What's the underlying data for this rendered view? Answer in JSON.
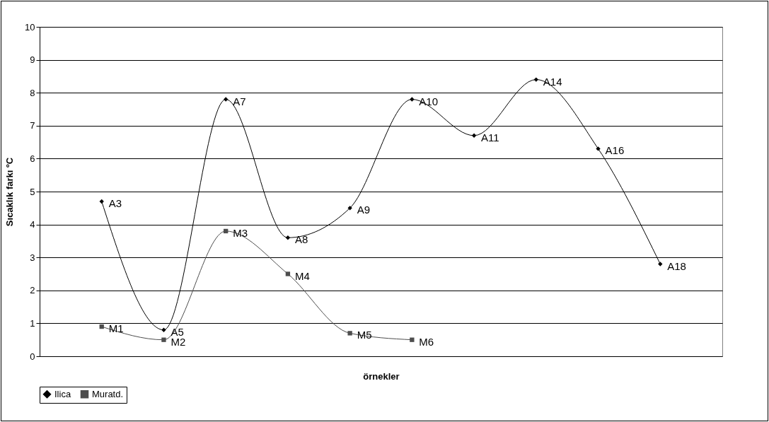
{
  "chart_data": {
    "type": "line",
    "xlabel": "örnekler",
    "ylabel": "Sıcaklık farkı ºC",
    "categories": [
      null,
      null,
      null,
      null,
      null,
      null,
      null,
      null,
      null,
      null
    ],
    "ylim": [
      0,
      10
    ],
    "yticks": [
      0,
      1,
      2,
      3,
      4,
      5,
      6,
      7,
      8,
      9,
      10
    ],
    "grid": "y",
    "legend": "bottom",
    "line_style": "solid",
    "series": [
      {
        "name": "Ilica",
        "color": "#000000",
        "marker": "diamond",
        "values": [
          4.7,
          0.8,
          7.8,
          3.6,
          4.5,
          7.8,
          6.7,
          8.4,
          6.3,
          2.8
        ],
        "value_labels": [
          "A3",
          "A5",
          "A7",
          "A8",
          "A9",
          "A10",
          "A11",
          "A14",
          "A16",
          "A18"
        ]
      },
      {
        "name": "Muratd.",
        "color": "#4d4d4d",
        "marker": "square",
        "values": [
          0.9,
          0.5,
          3.8,
          2.5,
          0.7,
          0.5,
          null,
          null,
          null,
          null
        ],
        "value_labels": [
          "M1",
          "M2",
          "M3",
          "M4",
          "M5",
          "M6",
          null,
          null,
          null,
          null
        ]
      }
    ]
  }
}
